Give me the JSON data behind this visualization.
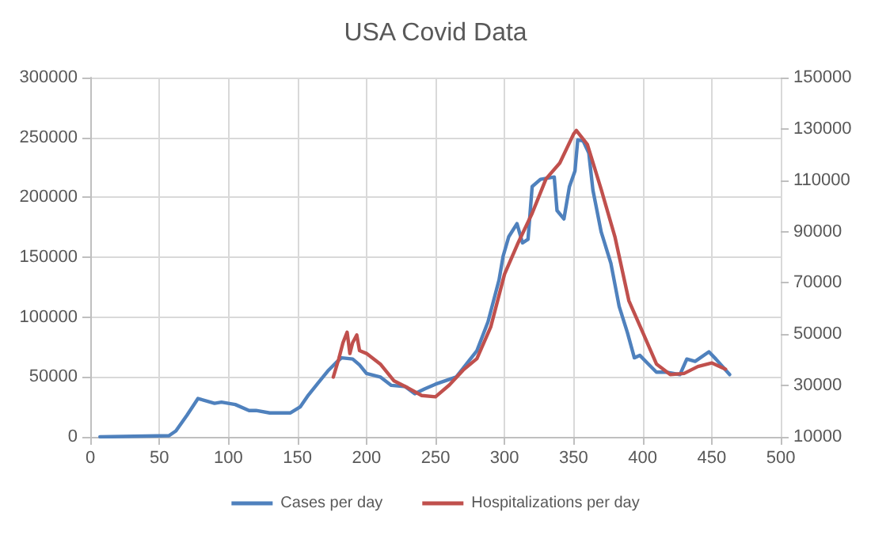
{
  "chart_data": {
    "type": "line",
    "title": "USA Covid Data",
    "legend": "bottom",
    "grid": true,
    "marker": "none",
    "line_style": "solid",
    "xlim": [
      0,
      500
    ],
    "xticks": [
      0,
      50,
      100,
      150,
      200,
      250,
      300,
      350,
      400,
      450,
      500
    ],
    "ylim": [
      0,
      300000
    ],
    "yticks": [
      0,
      50000,
      100000,
      150000,
      200000,
      250000,
      300000
    ],
    "y2lim": [
      10000,
      150000
    ],
    "y2ticks": [
      10000,
      30000,
      50000,
      70000,
      90000,
      110000,
      130000,
      150000
    ],
    "series": [
      {
        "name": "Cases per day",
        "color": "#4f81bd",
        "x": [
          7,
          57,
          62,
          70,
          78,
          90,
          95,
          105,
          115,
          120,
          130,
          145,
          152,
          158,
          165,
          172,
          178,
          182,
          190,
          195,
          200,
          210,
          218,
          228,
          235,
          242,
          250,
          265,
          280,
          288,
          296,
          299,
          303,
          309,
          313,
          317,
          320,
          326,
          336,
          338,
          343,
          347,
          351,
          353,
          357,
          361,
          364,
          370,
          377,
          383,
          389,
          394,
          398,
          404,
          410,
          417,
          427,
          432,
          438,
          448,
          453,
          463
        ],
        "values": [
          0,
          1000,
          5000,
          18000,
          32000,
          28000,
          29000,
          27000,
          22000,
          22000,
          20000,
          20000,
          25000,
          35000,
          45000,
          55000,
          62000,
          66000,
          65000,
          60000,
          53000,
          50000,
          43000,
          42000,
          36000,
          40000,
          44000,
          50000,
          72000,
          96000,
          131000,
          151000,
          167000,
          178000,
          162000,
          165000,
          209000,
          215000,
          217000,
          189000,
          182000,
          209000,
          222000,
          248000,
          247000,
          237000,
          206000,
          171000,
          145000,
          109000,
          87000,
          66000,
          68000,
          61000,
          54000,
          54000,
          52000,
          65000,
          63000,
          71000,
          65000,
          52000
        ]
      },
      {
        "name": "Hospitalizations per day",
        "color": "#c0504d",
        "axis": "y2",
        "x": [
          176,
          180,
          183,
          186,
          188,
          190,
          193,
          195,
          200,
          210,
          220,
          230,
          240,
          250,
          260,
          270,
          280,
          290,
          300,
          310,
          320,
          330,
          340,
          350,
          352,
          360,
          370,
          380,
          390,
          400,
          410,
          420,
          430,
          440,
          450,
          460
        ],
        "values": [
          33300,
          40500,
          46700,
          50800,
          42500,
          46700,
          49700,
          43600,
          42500,
          38400,
          31800,
          29100,
          26100,
          25600,
          30200,
          36000,
          40500,
          52800,
          73400,
          85800,
          97100,
          110500,
          116700,
          128000,
          129400,
          123900,
          106400,
          87800,
          63100,
          50800,
          38400,
          34300,
          34700,
          37400,
          38800,
          36400
        ]
      }
    ]
  }
}
